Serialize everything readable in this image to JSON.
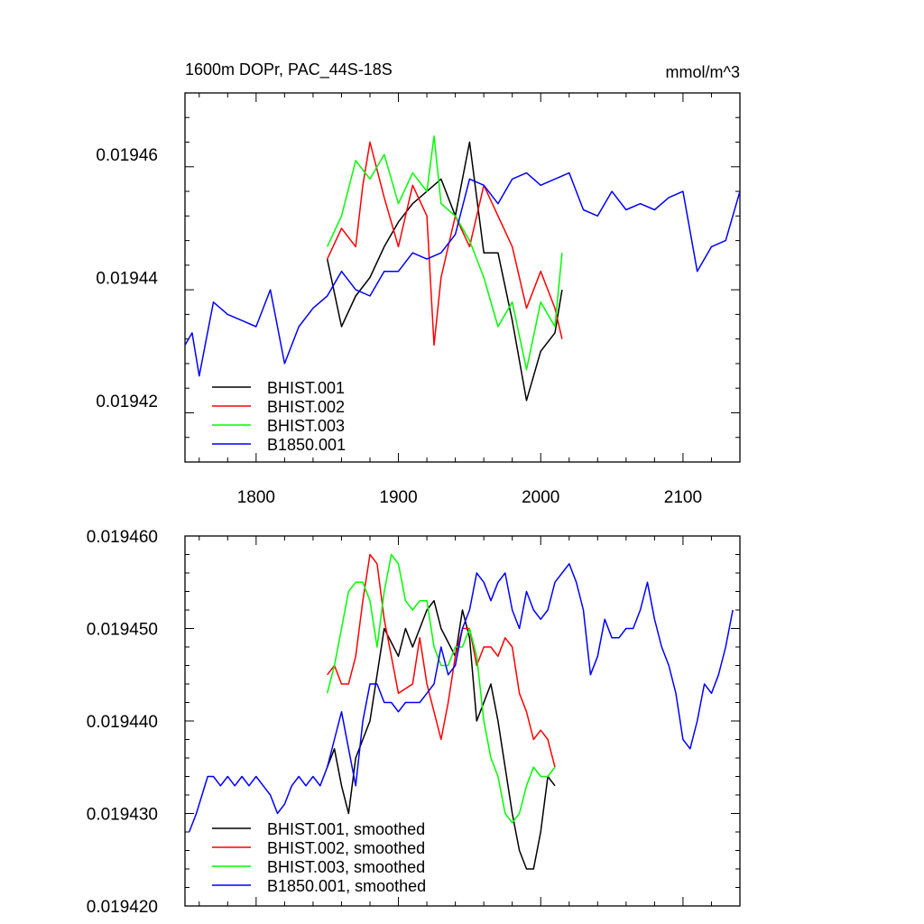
{
  "chart_data": [
    {
      "type": "line",
      "title": "1600m DOPr, PAC_44S-18S",
      "units": "mmol/m^3",
      "xlim": [
        1750,
        2140
      ],
      "ylim": [
        0.01941,
        0.01947
      ],
      "xticks": [
        1800,
        1900,
        2000,
        2100
      ],
      "xtick_labels": [
        "1800",
        "1900",
        "2000",
        "2100"
      ],
      "yticks": [
        0.01942,
        0.01944,
        0.01946
      ],
      "ytick_labels": [
        "0.01942",
        "0.01944",
        "0.01946"
      ],
      "legend_placement": "bottom-left",
      "series": [
        {
          "name": "BHIST.001",
          "color": "#000000",
          "x": [
            1850,
            1860,
            1870,
            1880,
            1890,
            1900,
            1910,
            1920,
            1930,
            1940,
            1950,
            1960,
            1970,
            1980,
            1990,
            2000,
            2010,
            2015
          ],
          "y": [
            0.019443,
            0.019432,
            0.019437,
            0.01944,
            0.019445,
            0.019449,
            0.019452,
            0.019454,
            0.019456,
            0.01945,
            0.019462,
            0.019444,
            0.019444,
            0.019433,
            0.01942,
            0.019428,
            0.019431,
            0.019438
          ]
        },
        {
          "name": "BHIST.002",
          "color": "#ff0000",
          "x": [
            1850,
            1860,
            1870,
            1875,
            1880,
            1890,
            1900,
            1910,
            1920,
            1925,
            1930,
            1940,
            1950,
            1960,
            1970,
            1980,
            1990,
            2000,
            2010,
            2015
          ],
          "y": [
            0.019443,
            0.019448,
            0.019445,
            0.019455,
            0.019462,
            0.019453,
            0.019445,
            0.019455,
            0.01945,
            0.019429,
            0.01944,
            0.01945,
            0.019445,
            0.019455,
            0.01945,
            0.019445,
            0.019435,
            0.019441,
            0.019435,
            0.01943
          ]
        },
        {
          "name": "BHIST.003",
          "color": "#00ff00",
          "x": [
            1850,
            1860,
            1870,
            1880,
            1890,
            1900,
            1910,
            1920,
            1925,
            1930,
            1940,
            1950,
            1960,
            1970,
            1980,
            1990,
            2000,
            2010,
            2015
          ],
          "y": [
            0.019445,
            0.01945,
            0.019459,
            0.019456,
            0.01946,
            0.019452,
            0.019457,
            0.019454,
            0.019463,
            0.019452,
            0.01945,
            0.019446,
            0.01944,
            0.019432,
            0.019436,
            0.019425,
            0.019436,
            0.019432,
            0.019444
          ]
        },
        {
          "name": "B1850.001",
          "color": "#0000ff",
          "x": [
            1750,
            1755,
            1760,
            1770,
            1780,
            1790,
            1800,
            1810,
            1820,
            1830,
            1840,
            1850,
            1860,
            1870,
            1880,
            1890,
            1900,
            1910,
            1920,
            1930,
            1940,
            1950,
            1960,
            1970,
            1980,
            1990,
            2000,
            2010,
            2020,
            2030,
            2040,
            2050,
            2060,
            2070,
            2080,
            2090,
            2100,
            2110,
            2120,
            2130,
            2140
          ],
          "y": [
            0.019429,
            0.019431,
            0.019424,
            0.019436,
            0.019434,
            0.019433,
            0.019432,
            0.019438,
            0.019426,
            0.019432,
            0.019435,
            0.019437,
            0.019441,
            0.019438,
            0.019437,
            0.019441,
            0.019441,
            0.019444,
            0.019443,
            0.019444,
            0.019447,
            0.019456,
            0.019455,
            0.019452,
            0.019456,
            0.019457,
            0.019455,
            0.019456,
            0.019457,
            0.019451,
            0.01945,
            0.019454,
            0.019451,
            0.019452,
            0.019451,
            0.019453,
            0.019454,
            0.019441,
            0.019445,
            0.019446,
            0.019454
          ]
        }
      ]
    },
    {
      "type": "line",
      "title": "",
      "xlim": [
        1750,
        2140
      ],
      "ylim": [
        0.01942,
        0.01946
      ],
      "xticks": [
        1800,
        1900,
        2000,
        2100
      ],
      "yticks": [
        0.01942,
        0.01943,
        0.01944,
        0.01945,
        0.01946
      ],
      "ytick_labels": [
        "0.019420",
        "0.019430",
        "0.019440",
        "0.019450",
        "0.019460"
      ],
      "legend_placement": "bottom-left",
      "series": [
        {
          "name": "BHIST.001, smoothed",
          "color": "#000000",
          "x": [
            1850,
            1855,
            1860,
            1865,
            1870,
            1880,
            1890,
            1900,
            1905,
            1910,
            1920,
            1925,
            1930,
            1940,
            1945,
            1950,
            1955,
            1960,
            1965,
            1970,
            1975,
            1980,
            1985,
            1990,
            1995,
            2000,
            2005,
            2010
          ],
          "y": [
            0.019435,
            0.019437,
            0.019433,
            0.01943,
            0.019436,
            0.01944,
            0.01945,
            0.019447,
            0.01945,
            0.019448,
            0.019452,
            0.019453,
            0.01945,
            0.019447,
            0.019452,
            0.019449,
            0.01944,
            0.019442,
            0.019444,
            0.01944,
            0.019435,
            0.01943,
            0.019426,
            0.019424,
            0.019424,
            0.019428,
            0.019434,
            0.019433
          ]
        },
        {
          "name": "BHIST.002, smoothed",
          "color": "#ff0000",
          "x": [
            1850,
            1855,
            1860,
            1865,
            1870,
            1875,
            1880,
            1885,
            1890,
            1895,
            1900,
            1910,
            1915,
            1920,
            1925,
            1930,
            1935,
            1940,
            1945,
            1950,
            1955,
            1960,
            1965,
            1970,
            1975,
            1980,
            1985,
            1990,
            1995,
            2000,
            2005,
            2010
          ],
          "y": [
            0.019445,
            0.019446,
            0.019444,
            0.019444,
            0.019447,
            0.019453,
            0.019458,
            0.019457,
            0.019451,
            0.019447,
            0.019443,
            0.019444,
            0.019449,
            0.019444,
            0.019441,
            0.019438,
            0.019442,
            0.019447,
            0.01945,
            0.01945,
            0.019446,
            0.019448,
            0.019448,
            0.019447,
            0.019449,
            0.019448,
            0.019443,
            0.019441,
            0.019438,
            0.019439,
            0.019438,
            0.019435
          ]
        },
        {
          "name": "BHIST.003, smoothed",
          "color": "#00ff00",
          "x": [
            1850,
            1855,
            1860,
            1865,
            1870,
            1875,
            1880,
            1885,
            1890,
            1895,
            1900,
            1905,
            1910,
            1915,
            1920,
            1925,
            1930,
            1935,
            1940,
            1945,
            1950,
            1955,
            1960,
            1965,
            1970,
            1975,
            1980,
            1985,
            1990,
            1995,
            2000,
            2005,
            2010
          ],
          "y": [
            0.019443,
            0.019446,
            0.01945,
            0.019454,
            0.019455,
            0.019455,
            0.019453,
            0.019448,
            0.019454,
            0.019458,
            0.019457,
            0.019453,
            0.019452,
            0.019453,
            0.019453,
            0.019448,
            0.019446,
            0.019446,
            0.019448,
            0.019448,
            0.01945,
            0.019447,
            0.01944,
            0.019436,
            0.019434,
            0.01943,
            0.019429,
            0.01943,
            0.019433,
            0.019435,
            0.019434,
            0.019434,
            0.019435
          ]
        },
        {
          "name": "B1850.001, smoothed",
          "color": "#0000ff",
          "x": [
            1753,
            1758,
            1762,
            1766,
            1770,
            1775,
            1780,
            1785,
            1790,
            1795,
            1800,
            1805,
            1810,
            1815,
            1820,
            1825,
            1830,
            1835,
            1840,
            1845,
            1850,
            1855,
            1860,
            1865,
            1870,
            1875,
            1880,
            1885,
            1890,
            1895,
            1900,
            1905,
            1910,
            1915,
            1920,
            1925,
            1930,
            1935,
            1940,
            1945,
            1950,
            1955,
            1960,
            1965,
            1970,
            1975,
            1980,
            1985,
            1990,
            1995,
            2000,
            2005,
            2010,
            2015,
            2020,
            2025,
            2030,
            2035,
            2040,
            2045,
            2050,
            2055,
            2060,
            2065,
            2070,
            2075,
            2080,
            2085,
            2090,
            2095,
            2100,
            2105,
            2110,
            2115,
            2120,
            2125,
            2130,
            2135
          ],
          "y": [
            0.019428,
            0.01943,
            0.019432,
            0.019434,
            0.019434,
            0.019433,
            0.019434,
            0.019433,
            0.019434,
            0.019433,
            0.019434,
            0.019433,
            0.019432,
            0.01943,
            0.019431,
            0.019433,
            0.019434,
            0.019433,
            0.019434,
            0.019433,
            0.019435,
            0.019438,
            0.019441,
            0.019437,
            0.019433,
            0.01944,
            0.019444,
            0.019444,
            0.019442,
            0.019442,
            0.019441,
            0.019442,
            0.019442,
            0.019442,
            0.019443,
            0.019444,
            0.019448,
            0.019445,
            0.019446,
            0.01945,
            0.019452,
            0.019456,
            0.019455,
            0.019453,
            0.019455,
            0.019456,
            0.019452,
            0.01945,
            0.019454,
            0.019452,
            0.019451,
            0.019452,
            0.019455,
            0.019456,
            0.019457,
            0.019455,
            0.019452,
            0.019445,
            0.019447,
            0.019451,
            0.019449,
            0.019449,
            0.01945,
            0.01945,
            0.019452,
            0.019455,
            0.019451,
            0.019448,
            0.019446,
            0.019443,
            0.019438,
            0.019437,
            0.01944,
            0.019444,
            0.019443,
            0.019445,
            0.019448,
            0.019452
          ]
        }
      ]
    }
  ]
}
